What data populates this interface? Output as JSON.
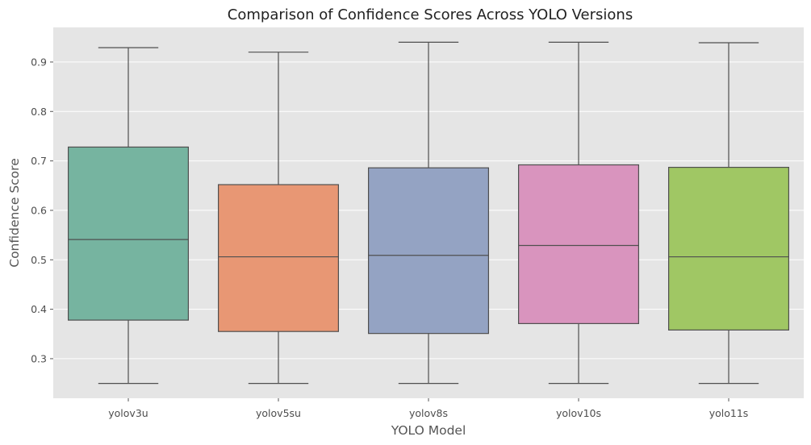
{
  "chart_data": {
    "type": "box",
    "title": "Comparison of Confidence Scores Across YOLO Versions",
    "xlabel": "YOLO Model",
    "ylabel": "Confidence Score",
    "ylim": [
      0.22,
      0.97
    ],
    "yticks": [
      0.3,
      0.4,
      0.5,
      0.6,
      0.7,
      0.8,
      0.9
    ],
    "ytick_labels": [
      "0.3",
      "0.4",
      "0.5",
      "0.6",
      "0.7",
      "0.8",
      "0.9"
    ],
    "grid": true,
    "categories": [
      "yolov3u",
      "yolov5su",
      "yolov8s",
      "yolov10s",
      "yolo11s"
    ],
    "boxes": [
      {
        "category": "yolov3u",
        "min": 0.25,
        "q1": 0.378,
        "median": 0.541,
        "q3": 0.728,
        "max": 0.929,
        "color": "#76b4a0"
      },
      {
        "category": "yolov5su",
        "min": 0.25,
        "q1": 0.355,
        "median": 0.506,
        "q3": 0.652,
        "max": 0.92,
        "color": "#e89774"
      },
      {
        "category": "yolov8s",
        "min": 0.25,
        "q1": 0.351,
        "median": 0.509,
        "q3": 0.686,
        "max": 0.94,
        "color": "#94a3c3"
      },
      {
        "category": "yolov10s",
        "min": 0.25,
        "q1": 0.371,
        "median": 0.529,
        "q3": 0.692,
        "max": 0.94,
        "color": "#d994be"
      },
      {
        "category": "yolo11s",
        "min": 0.25,
        "q1": 0.358,
        "median": 0.506,
        "q3": 0.687,
        "max": 0.939,
        "color": "#a0c764"
      }
    ]
  }
}
